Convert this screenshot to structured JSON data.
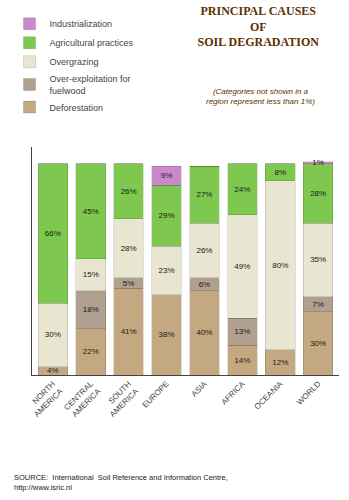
{
  "chart_data": {
    "type": "bar",
    "stacked": true,
    "title": "PRINCIPAL CAUSES\nOF\nSOIL DEGRADATION",
    "subtitle": "(Categories not shown in a\nregion represent less than 1%)",
    "annotations": [
      "SOURCE:  International  Soil Reference and Information Centre,\nhttp://www.isric.nl"
    ],
    "categories": [
      "NORTH\nAMERICA",
      "CENTRAL\nAMERICA",
      "SOUTH\nAMERICA",
      "EUROPE",
      "ASIA",
      "AFRICA",
      "OCEANIA",
      "WORLD"
    ],
    "series": [
      {
        "name": "Deforestation",
        "color": "#c4a882",
        "values": [
          4,
          22,
          41,
          38,
          40,
          14,
          12,
          30
        ],
        "value_labels": [
          "4%",
          "22%",
          "41%",
          "38%",
          "40%",
          "14%",
          "12%",
          "30%"
        ]
      },
      {
        "name": "Over-exploitation for\nfuelwood",
        "color": "#b0a090",
        "values": [
          0,
          18,
          5,
          0,
          6,
          13,
          0,
          7
        ],
        "value_labels": [
          null,
          "18%",
          "5%",
          null,
          "6%",
          "13%",
          null,
          "7%"
        ]
      },
      {
        "name": "Overgrazing",
        "color": "#e8e5d0",
        "values": [
          30,
          15,
          28,
          23,
          26,
          49,
          80,
          35
        ],
        "value_labels": [
          "30%",
          "15%",
          "28%",
          "23%",
          "26%",
          "49%",
          "80%",
          "35%"
        ]
      },
      {
        "name": "Agricultural practices",
        "color": "#7ec850",
        "values": [
          66,
          45,
          26,
          29,
          27,
          24,
          8,
          28
        ],
        "value_labels": [
          "66%",
          "45%",
          "26%",
          "29%",
          "27%",
          "24%",
          "8%",
          "28%"
        ]
      },
      {
        "name": "Industrialization",
        "color": "#cc88cc",
        "values": [
          0,
          0,
          0,
          9,
          0,
          0,
          0,
          1
        ],
        "value_labels": [
          null,
          null,
          null,
          "9%",
          null,
          null,
          null,
          "1%"
        ]
      }
    ],
    "ylim": [
      0,
      108
    ],
    "grid": false,
    "legend": "top-left",
    "data_labels": true,
    "tick_labels": "x"
  }
}
